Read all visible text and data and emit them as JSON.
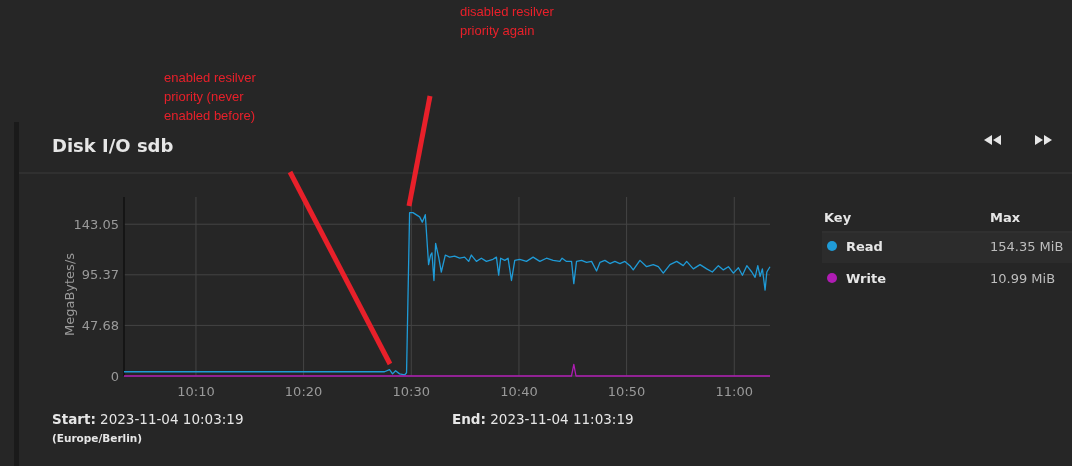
{
  "chart_data": {
    "type": "line",
    "title": "Disk I/O sdb",
    "ylabel": "MegaBytes/s",
    "legend_title": "Key",
    "legend": "right",
    "grid": true,
    "marker": "none",
    "xlim": [
      10.0553,
      11.0553
    ],
    "xticks": [
      {
        "value": 10.1667,
        "label": "10:10"
      },
      {
        "value": 10.3333,
        "label": "10:20"
      },
      {
        "value": 10.5,
        "label": "10:30"
      },
      {
        "value": 10.6667,
        "label": "10:40"
      },
      {
        "value": 10.8333,
        "label": "10:50"
      },
      {
        "value": 11.0,
        "label": "11:00"
      }
    ],
    "ylim": [
      0,
      168.7
    ],
    "yticks": [
      0,
      47.68,
      95.37,
      143.05
    ],
    "series": [
      {
        "name": "Read",
        "color": "#1f9bd7",
        "x": [
          10.0553,
          10.1098,
          10.1718,
          10.2497,
          10.3268,
          10.4042,
          10.4586,
          10.4663,
          10.471,
          10.4757,
          10.4819,
          10.4896,
          10.4927,
          10.4974,
          10.5026,
          10.5129,
          10.5171,
          10.5217,
          10.5268,
          10.5299,
          10.532,
          10.5351,
          10.5377,
          10.5424,
          10.5465,
          10.5527,
          10.5594,
          10.5671,
          10.5749,
          10.5826,
          10.5888,
          10.593,
          10.6008,
          10.6085,
          10.6163,
          10.6265,
          10.6318,
          10.6353,
          10.6384,
          10.6447,
          10.6498,
          10.6551,
          10.6602,
          10.6679,
          10.6783,
          10.6886,
          10.699,
          10.7093,
          10.7196,
          10.73,
          10.7335,
          10.7403,
          10.7481,
          10.7516,
          10.7558,
          10.7636,
          10.7713,
          10.7791,
          10.7868,
          10.792,
          10.7997,
          10.8075,
          10.8152,
          10.823,
          10.8307,
          10.8385,
          10.8436,
          10.854,
          10.8643,
          10.8746,
          10.8824,
          10.8901,
          10.9005,
          10.9109,
          10.921,
          10.9263,
          10.9366,
          10.947,
          10.9573,
          10.966,
          10.9754,
          10.9831,
          10.9909,
          10.9986,
          11.0064,
          11.0126,
          11.0194,
          11.0271,
          11.0322,
          11.0364,
          11.04,
          11.0435,
          11.0477,
          11.0504,
          11.0553
        ],
        "values": [
          4,
          4,
          4,
          4,
          4,
          4,
          4,
          6,
          2,
          5,
          2,
          1,
          3,
          154,
          154,
          150,
          145,
          152,
          105,
          114,
          116,
          90,
          125,
          112,
          98,
          114,
          112,
          113,
          111,
          112,
          108,
          114,
          108,
          111,
          108,
          110,
          112,
          95,
          111,
          109,
          111,
          90,
          109,
          110,
          108,
          112,
          108,
          111,
          109,
          108,
          111,
          108,
          108,
          87,
          108,
          109,
          107,
          108,
          99,
          107,
          109,
          106,
          108,
          106,
          108,
          104,
          100,
          109,
          103,
          105,
          103,
          97,
          105,
          108,
          104,
          108,
          101,
          105,
          101,
          98,
          104,
          100,
          103,
          97,
          102,
          95,
          104,
          98,
          93,
          104,
          94,
          101,
          81,
          98,
          103
        ]
      },
      {
        "name": "Write",
        "color": "#b01cb4",
        "x": [
          10.0553,
          10.748,
          10.7516,
          10.755,
          11.0553
        ],
        "values": [
          0,
          0,
          11,
          0,
          0
        ]
      }
    ],
    "annotations": [
      "enabled resilver priority (never enabled before)",
      "disabled resilver priority again",
      "Start: 2023-11-04 10:03:19",
      "(Europe/Berlin)",
      "End: 2023-11-04 11:03:19",
      "Max",
      "154.35 MiB",
      "10.99 MiB"
    ]
  }
}
